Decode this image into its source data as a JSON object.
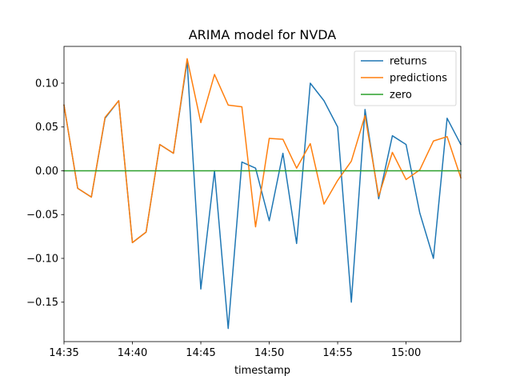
{
  "chart_data": {
    "type": "line",
    "title": "ARIMA model for NVDA",
    "xlabel": "timestamp",
    "ylabel": "",
    "x": [
      "14:35",
      "14:36",
      "14:37",
      "14:38",
      "14:39",
      "14:40",
      "14:41",
      "14:42",
      "14:43",
      "14:44",
      "14:45",
      "14:46",
      "14:47",
      "14:48",
      "14:49",
      "14:50",
      "14:51",
      "14:52",
      "14:53",
      "14:54",
      "14:55",
      "14:56",
      "14:57",
      "14:58",
      "14:59",
      "15:00",
      "15:01",
      "15:02",
      "15:03",
      "15:04"
    ],
    "xlim": [
      "14:35",
      "15:04"
    ],
    "ylim": [
      -0.195,
      0.142
    ],
    "x_ticks": [
      "14:35",
      "14:40",
      "14:45",
      "14:50",
      "14:55",
      "15:00"
    ],
    "y_ticks": [
      {
        "value": -0.15,
        "label": "−0.15"
      },
      {
        "value": -0.1,
        "label": "−0.10"
      },
      {
        "value": -0.05,
        "label": "−0.05"
      },
      {
        "value": 0.0,
        "label": "0.00"
      },
      {
        "value": 0.05,
        "label": "0.05"
      },
      {
        "value": 0.1,
        "label": "0.10"
      }
    ],
    "grid": false,
    "legend_position": "top-right",
    "series": [
      {
        "name": "returns",
        "color": "#1f77b4",
        "values": [
          0.075,
          -0.02,
          -0.03,
          0.06,
          0.08,
          -0.082,
          -0.07,
          0.03,
          0.02,
          0.125,
          -0.135,
          0.0,
          -0.18,
          0.01,
          0.003,
          -0.057,
          0.02,
          -0.083,
          0.1,
          0.08,
          0.05,
          -0.15,
          0.07,
          -0.032,
          0.04,
          0.03,
          -0.048,
          -0.1,
          0.06,
          0.03
        ]
      },
      {
        "name": "predictions",
        "color": "#ff7f0e",
        "values": [
          0.075,
          -0.02,
          -0.03,
          0.061,
          0.08,
          -0.082,
          -0.07,
          0.03,
          0.02,
          0.128,
          0.055,
          0.11,
          0.075,
          0.073,
          -0.064,
          0.037,
          0.036,
          0.003,
          0.031,
          -0.038,
          -0.011,
          0.011,
          0.063,
          -0.029,
          0.021,
          -0.01,
          0.001,
          0.034,
          0.039,
          -0.008
        ]
      },
      {
        "name": "zero",
        "color": "#2ca02c",
        "values": [
          0,
          0,
          0,
          0,
          0,
          0,
          0,
          0,
          0,
          0,
          0,
          0,
          0,
          0,
          0,
          0,
          0,
          0,
          0,
          0,
          0,
          0,
          0,
          0,
          0,
          0,
          0,
          0,
          0,
          0
        ]
      }
    ]
  }
}
